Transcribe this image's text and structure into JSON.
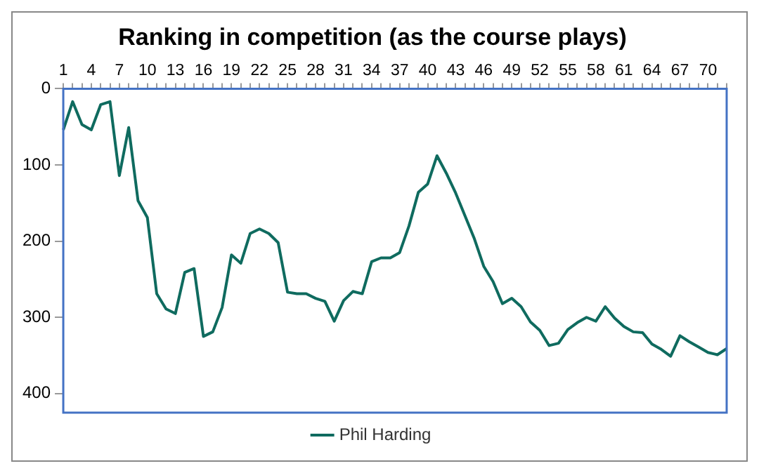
{
  "chart_data": {
    "type": "line",
    "title": "Ranking in competition (as the course plays)",
    "categories": [
      "1",
      null,
      null,
      "4",
      null,
      null,
      "7",
      null,
      null,
      "10",
      null,
      null,
      "13",
      null,
      null,
      "16",
      null,
      null,
      "19",
      null,
      null,
      "22",
      null,
      null,
      "25",
      null,
      null,
      "28",
      null,
      null,
      "31",
      null,
      null,
      "34",
      null,
      null,
      "37",
      null,
      null,
      "40",
      null,
      null,
      "43",
      null,
      null,
      "46",
      null,
      null,
      "49",
      null,
      null,
      "52",
      null,
      null,
      "55",
      null,
      null,
      "58",
      null,
      null,
      "61",
      null,
      null,
      "64",
      null,
      null,
      "67",
      null,
      null,
      "70",
      null,
      null
    ],
    "series": [
      {
        "name": "Phil Harding",
        "color": "#0f6b5f",
        "values": [
          54,
          17,
          47,
          54,
          21,
          17,
          114,
          51,
          147,
          169,
          269,
          289,
          295,
          241,
          236,
          325,
          319,
          287,
          218,
          229,
          190,
          184,
          190,
          202,
          267,
          269,
          269,
          275,
          279,
          305,
          278,
          266,
          269,
          227,
          222,
          222,
          215,
          180,
          136,
          125,
          88,
          111,
          137,
          167,
          197,
          233,
          253,
          282,
          275,
          286,
          306,
          317,
          337,
          334,
          316,
          307,
          300,
          305,
          286,
          301,
          312,
          319,
          320,
          335,
          342,
          351,
          324,
          332,
          339,
          346,
          349,
          341
        ]
      }
    ],
    "ylim": [
      425,
      0
    ],
    "yticks": [
      0,
      100,
      200,
      300,
      400
    ],
    "grid": false,
    "legend": "bottom",
    "marker": "none",
    "line_style": "solid"
  }
}
